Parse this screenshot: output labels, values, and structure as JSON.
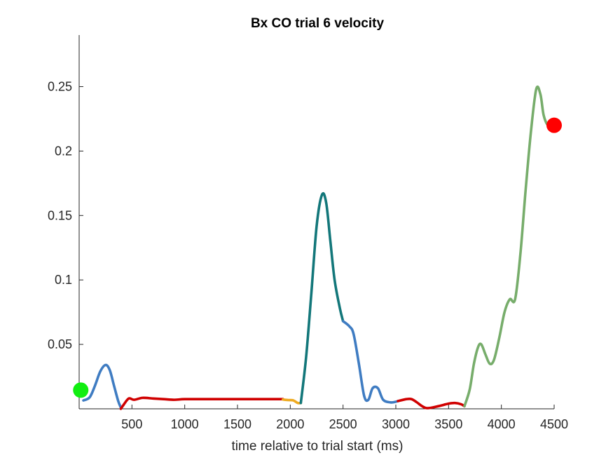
{
  "chart_data": {
    "type": "line",
    "title": "Bx  CO trial 6 velocity",
    "xlabel": "time relative to trial start (ms)",
    "ylabel": "",
    "xlim": [
      0,
      4500
    ],
    "ylim": [
      0,
      0.29
    ],
    "x_ticks": [
      500,
      1000,
      1500,
      2000,
      2500,
      3000,
      3500,
      4000,
      4500
    ],
    "x_tick_labels": [
      "500",
      "1000",
      "1500",
      "2000",
      "2500",
      "3000",
      "3500",
      "4000",
      "4500"
    ],
    "y_ticks": [
      0.05,
      0.1,
      0.15,
      0.2,
      0.25
    ],
    "y_tick_labels": [
      "0.05",
      "0.1",
      "0.15",
      "0.2",
      "0.25"
    ],
    "grid": false,
    "segments": [
      {
        "color": "#3f7cc2",
        "points": [
          [
            40,
            0.0065
          ],
          [
            100,
            0.009
          ],
          [
            150,
            0.018
          ],
          [
            200,
            0.029
          ],
          [
            250,
            0.034
          ],
          [
            290,
            0.03
          ],
          [
            330,
            0.018
          ],
          [
            370,
            0.006
          ],
          [
            395,
            0.001
          ]
        ]
      },
      {
        "color": "#d00000",
        "points": [
          [
            395,
            0.0
          ],
          [
            420,
            0.003
          ],
          [
            470,
            0.008
          ],
          [
            520,
            0.007
          ],
          [
            600,
            0.0085
          ],
          [
            700,
            0.008
          ],
          [
            800,
            0.0075
          ],
          [
            900,
            0.007
          ],
          [
            1000,
            0.0075
          ],
          [
            1200,
            0.0075
          ],
          [
            1400,
            0.0075
          ],
          [
            1600,
            0.0075
          ],
          [
            1800,
            0.0075
          ],
          [
            1930,
            0.0075
          ]
        ]
      },
      {
        "color": "#eeaa20",
        "points": [
          [
            1930,
            0.0072
          ],
          [
            1980,
            0.0068
          ],
          [
            2030,
            0.0065
          ],
          [
            2070,
            0.0045
          ],
          [
            2100,
            0.0045
          ]
        ]
      },
      {
        "color": "#13777a",
        "points": [
          [
            2100,
            0.0045
          ],
          [
            2150,
            0.04
          ],
          [
            2200,
            0.09
          ],
          [
            2250,
            0.142
          ],
          [
            2300,
            0.166
          ],
          [
            2340,
            0.16
          ],
          [
            2380,
            0.13
          ],
          [
            2420,
            0.1
          ],
          [
            2470,
            0.078
          ],
          [
            2500,
            0.068
          ]
        ]
      },
      {
        "color": "#3f7cc2",
        "points": [
          [
            2500,
            0.068
          ],
          [
            2560,
            0.064
          ],
          [
            2600,
            0.058
          ],
          [
            2650,
            0.035
          ],
          [
            2700,
            0.01
          ],
          [
            2740,
            0.007
          ],
          [
            2780,
            0.016
          ],
          [
            2830,
            0.016
          ],
          [
            2880,
            0.007
          ],
          [
            2950,
            0.005
          ],
          [
            3000,
            0.0055
          ],
          [
            3020,
            0.006
          ]
        ]
      },
      {
        "color": "#d00000",
        "points": [
          [
            3020,
            0.006
          ],
          [
            3100,
            0.0075
          ],
          [
            3150,
            0.0075
          ],
          [
            3200,
            0.005
          ],
          [
            3250,
            0.002
          ],
          [
            3300,
            0.0005
          ],
          [
            3400,
            0.002
          ],
          [
            3500,
            0.004
          ],
          [
            3560,
            0.0045
          ],
          [
            3620,
            0.0035
          ],
          [
            3650,
            0.002
          ]
        ]
      },
      {
        "color": "#77ad6b",
        "points": [
          [
            3650,
            0.002
          ],
          [
            3700,
            0.015
          ],
          [
            3740,
            0.035
          ],
          [
            3780,
            0.048
          ],
          [
            3810,
            0.05
          ],
          [
            3850,
            0.042
          ],
          [
            3890,
            0.035
          ],
          [
            3930,
            0.038
          ],
          [
            3980,
            0.055
          ],
          [
            4030,
            0.075
          ],
          [
            4080,
            0.085
          ],
          [
            4130,
            0.085
          ],
          [
            4180,
            0.12
          ],
          [
            4230,
            0.17
          ],
          [
            4280,
            0.215
          ],
          [
            4330,
            0.248
          ],
          [
            4370,
            0.244
          ],
          [
            4400,
            0.228
          ],
          [
            4440,
            0.22
          ],
          [
            4480,
            0.22
          ]
        ]
      }
    ],
    "markers": [
      {
        "label": "start",
        "x": 15,
        "y": 0.0145,
        "color": "#11ee11"
      },
      {
        "label": "end",
        "x": 4500,
        "y": 0.22,
        "color": "#ff0000"
      }
    ]
  }
}
